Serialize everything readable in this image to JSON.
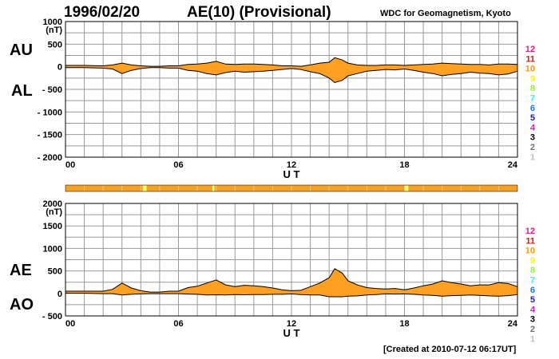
{
  "header": {
    "date": "1996/02/20",
    "title": "AE(10) (Provisional)",
    "source": "WDC for Geomagnetism, Kyoto"
  },
  "labels": {
    "au": "AU",
    "al": "AL",
    "ae": "AE",
    "ao": "AO"
  },
  "footer": {
    "created": "[Created at 2010-07-12 06:17UT]"
  },
  "colors": {
    "fill": "#ffa020",
    "grid": "#9a9a9a",
    "line": "#000000",
    "bar": "#f5a021",
    "bar_mark": "#ffff66"
  },
  "legend": [
    {
      "label": "12",
      "color": "#e0208c"
    },
    {
      "label": "11",
      "color": "#e01010"
    },
    {
      "label": "10",
      "color": "#ff9a00"
    },
    {
      "label": "9",
      "color": "#ffff00"
    },
    {
      "label": "8",
      "color": "#8cff20"
    },
    {
      "label": "7",
      "color": "#20ffff"
    },
    {
      "label": "6",
      "color": "#1f78ff"
    },
    {
      "label": "5",
      "color": "#1c1cc8"
    },
    {
      "label": "4",
      "color": "#d21fd2"
    },
    {
      "label": "3",
      "color": "#000000"
    },
    {
      "label": "2",
      "color": "#707070"
    },
    {
      "label": "1",
      "color": "#c0c0c0"
    }
  ],
  "chart_data": [
    {
      "type": "area",
      "name": "AU/AL",
      "xlabel": "U T",
      "ylabel": "(nT)",
      "xlim": [
        0,
        24
      ],
      "ylim": [
        -2000,
        1000
      ],
      "xticks": [
        "00",
        "06",
        "12",
        "18",
        "24"
      ],
      "yticks": [
        "1000",
        "500",
        "0",
        "- 500",
        "- 1000",
        "- 1500",
        "- 2000"
      ],
      "grid": true,
      "x": [
        0,
        1,
        2,
        2.5,
        3,
        3.5,
        4,
        4.5,
        5,
        5.5,
        6,
        6.5,
        7,
        7.5,
        8,
        8.5,
        9,
        9.5,
        10,
        10.5,
        11,
        11.5,
        12,
        12.5,
        13,
        13.5,
        14,
        14.3,
        14.7,
        15,
        15.5,
        16,
        16.5,
        17,
        17.5,
        18,
        18.5,
        19,
        19.5,
        20,
        20.5,
        21,
        21.5,
        22,
        22.5,
        23,
        23.5,
        24
      ],
      "series": [
        {
          "name": "AU",
          "values": [
            30,
            30,
            20,
            40,
            80,
            40,
            20,
            10,
            10,
            20,
            20,
            50,
            60,
            80,
            120,
            60,
            50,
            60,
            60,
            50,
            40,
            20,
            20,
            10,
            40,
            80,
            100,
            200,
            150,
            80,
            40,
            30,
            30,
            40,
            40,
            30,
            40,
            50,
            60,
            80,
            70,
            60,
            50,
            50,
            40,
            60,
            60,
            50
          ]
        },
        {
          "name": "AL",
          "values": [
            -20,
            -20,
            -30,
            -50,
            -150,
            -80,
            -40,
            -20,
            -20,
            -30,
            -30,
            -80,
            -100,
            -150,
            -180,
            -130,
            -100,
            -120,
            -110,
            -100,
            -80,
            -60,
            -40,
            -60,
            -110,
            -150,
            -250,
            -350,
            -300,
            -200,
            -150,
            -100,
            -80,
            -60,
            -70,
            -50,
            -80,
            -120,
            -150,
            -200,
            -170,
            -150,
            -120,
            -140,
            -150,
            -180,
            -160,
            -100
          ]
        }
      ]
    },
    {
      "type": "area",
      "name": "AE/AO",
      "xlabel": "U T",
      "ylabel": "(nT)",
      "xlim": [
        0,
        24
      ],
      "ylim": [
        -500,
        2000
      ],
      "xticks": [
        "00",
        "06",
        "12",
        "18",
        "24"
      ],
      "yticks": [
        "2000",
        "1500",
        "1000",
        "500",
        "0",
        "- 500"
      ],
      "grid": true,
      "x": [
        0,
        1,
        2,
        2.5,
        3,
        3.5,
        4,
        4.5,
        5,
        5.5,
        6,
        6.5,
        7,
        7.5,
        8,
        8.5,
        9,
        9.5,
        10,
        10.5,
        11,
        11.5,
        12,
        12.5,
        13,
        13.5,
        14,
        14.3,
        14.7,
        15,
        15.5,
        16,
        16.5,
        17,
        17.5,
        18,
        18.5,
        19,
        19.5,
        20,
        20.5,
        21,
        21.5,
        22,
        22.5,
        23,
        23.5,
        24
      ],
      "series": [
        {
          "name": "AE",
          "values": [
            50,
            50,
            50,
            90,
            230,
            120,
            60,
            30,
            30,
            50,
            50,
            130,
            160,
            230,
            300,
            190,
            150,
            180,
            170,
            150,
            120,
            80,
            60,
            70,
            150,
            230,
            350,
            550,
            450,
            280,
            190,
            130,
            110,
            100,
            110,
            80,
            120,
            170,
            210,
            280,
            240,
            210,
            170,
            190,
            190,
            240,
            220,
            150
          ]
        },
        {
          "name": "AO",
          "values": [
            5,
            5,
            -5,
            -5,
            -35,
            -20,
            -10,
            -5,
            -5,
            -5,
            -5,
            -15,
            -20,
            -35,
            -30,
            -35,
            -25,
            -30,
            -25,
            -25,
            -20,
            -20,
            -10,
            -25,
            -35,
            -35,
            -75,
            -75,
            -75,
            -60,
            -55,
            -35,
            -25,
            -10,
            -15,
            -10,
            -20,
            -35,
            -45,
            -60,
            -50,
            -45,
            -35,
            -45,
            -55,
            -60,
            -50,
            -25
          ]
        }
      ]
    }
  ]
}
